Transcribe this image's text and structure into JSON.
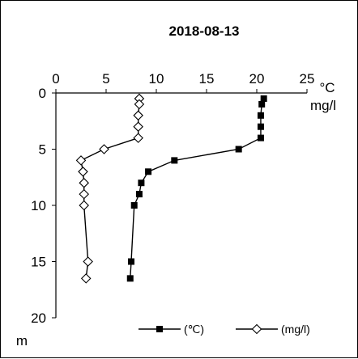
{
  "chart_data": {
    "type": "line",
    "title": "2018-08-13",
    "x_unit_label": "°C",
    "x_unit_label_2": "mg/l",
    "y_unit_label": "m",
    "xlim": [
      0,
      25
    ],
    "ylim": [
      0,
      20
    ],
    "y_inverted": true,
    "x_axis_position": "top",
    "grid": false,
    "x_ticks": [
      "0",
      "5",
      "10",
      "15",
      "20",
      "25"
    ],
    "y_ticks": [
      "0",
      "5",
      "10",
      "15",
      "20"
    ],
    "legend_position": "bottom-right",
    "series": [
      {
        "name": "(℃)",
        "marker": "square",
        "color": "#000000",
        "points": [
          {
            "x": 20.7,
            "depth": 0.5
          },
          {
            "x": 20.5,
            "depth": 1
          },
          {
            "x": 20.4,
            "depth": 2
          },
          {
            "x": 20.4,
            "depth": 3
          },
          {
            "x": 20.4,
            "depth": 4
          },
          {
            "x": 18.2,
            "depth": 5
          },
          {
            "x": 11.8,
            "depth": 6
          },
          {
            "x": 9.2,
            "depth": 7
          },
          {
            "x": 8.5,
            "depth": 8
          },
          {
            "x": 8.3,
            "depth": 9
          },
          {
            "x": 7.8,
            "depth": 10
          },
          {
            "x": 7.5,
            "depth": 15
          },
          {
            "x": 7.4,
            "depth": 16.5
          }
        ]
      },
      {
        "name": "(mg/l)",
        "marker": "diamond-open",
        "color": "#000000",
        "points": [
          {
            "x": 8.3,
            "depth": 0.5
          },
          {
            "x": 8.3,
            "depth": 1
          },
          {
            "x": 8.2,
            "depth": 2
          },
          {
            "x": 8.2,
            "depth": 3
          },
          {
            "x": 8.2,
            "depth": 4
          },
          {
            "x": 4.8,
            "depth": 5
          },
          {
            "x": 2.5,
            "depth": 6
          },
          {
            "x": 2.7,
            "depth": 7
          },
          {
            "x": 2.8,
            "depth": 8
          },
          {
            "x": 2.8,
            "depth": 9
          },
          {
            "x": 2.8,
            "depth": 10
          },
          {
            "x": 3.2,
            "depth": 15
          },
          {
            "x": 3.0,
            "depth": 16.5
          }
        ]
      }
    ]
  }
}
